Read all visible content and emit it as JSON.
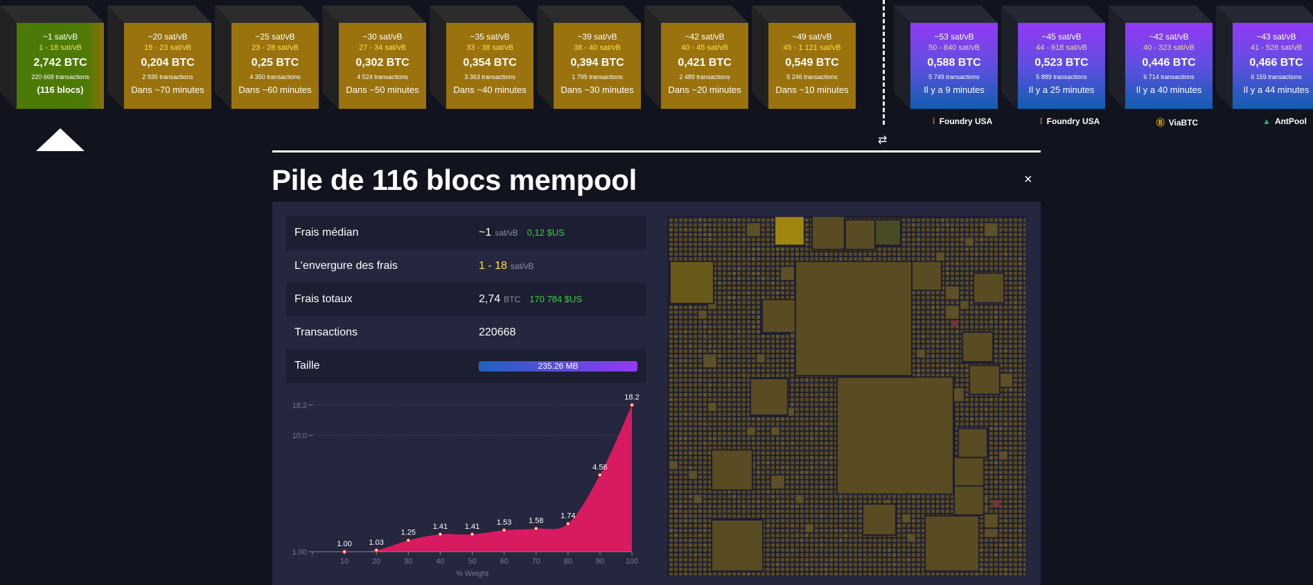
{
  "projected_blocks": [
    {
      "fee": "~1 sat/vB",
      "range": "1 - 18 sat/vB",
      "total": "2,742 BTC",
      "txs": "220 668 transactions",
      "footer": "(116 blocs)"
    },
    {
      "fee": "~20 sat/vB",
      "range": "19 - 23 sat/vB",
      "total": "0,204 BTC",
      "txs": "2 935 transactions",
      "footer": "Dans ~70 minutes"
    },
    {
      "fee": "~25 sat/vB",
      "range": "23 - 28 sat/vB",
      "total": "0,25 BTC",
      "txs": "4 350 transactions",
      "footer": "Dans ~60 minutes"
    },
    {
      "fee": "~30 sat/vB",
      "range": "27 - 34 sat/vB",
      "total": "0,302 BTC",
      "txs": "4 524 transactions",
      "footer": "Dans ~50 minutes"
    },
    {
      "fee": "~35 sat/vB",
      "range": "33 - 38 sat/vB",
      "total": "0,354 BTC",
      "txs": "3 363 transactions",
      "footer": "Dans ~40 minutes"
    },
    {
      "fee": "~39 sat/vB",
      "range": "38 - 40 sat/vB",
      "total": "0,394 BTC",
      "txs": "1 795 transactions",
      "footer": "Dans ~30 minutes"
    },
    {
      "fee": "~42 sat/vB",
      "range": "40 - 45 sat/vB",
      "total": "0,421 BTC",
      "txs": "2 489 transactions",
      "footer": "Dans ~20 minutes"
    },
    {
      "fee": "~49 sat/vB",
      "range": "45 - 1 121 sat/vB",
      "total": "0,549 BTC",
      "txs": "5 246 transactions",
      "footer": "Dans ~10 minutes"
    }
  ],
  "mined_blocks": [
    {
      "fee": "~53 sat/vB",
      "range": "50 - 840 sat/vB",
      "total": "0,588 BTC",
      "txs": "5 749 transactions",
      "footer": "Il y a 9 minutes",
      "pool": "Foundry USA",
      "pool_icon": "foundry-icon"
    },
    {
      "fee": "~45 sat/vB",
      "range": "44 - 918 sat/vB",
      "total": "0,523 BTC",
      "txs": "5 889 transactions",
      "footer": "Il y a 25 minutes",
      "pool": "Foundry USA",
      "pool_icon": "foundry-icon"
    },
    {
      "fee": "~42 sat/vB",
      "range": "40 - 323 sat/vB",
      "total": "0,446 BTC",
      "txs": "6 714 transactions",
      "footer": "Il y a 40 minutes",
      "pool": "ViaBTC",
      "pool_icon": "viabtc-icon"
    },
    {
      "fee": "~43 sat/vB",
      "range": "41 - 526 sat/vB",
      "total": "0,466 BTC",
      "txs": "6 159 transactions",
      "footer": "Il y a 44 minutes",
      "pool": "AntPool",
      "pool_icon": "antpool-icon"
    }
  ],
  "swap_icon": "⇄",
  "detail": {
    "title": "Pile de 116 blocs mempool",
    "close": "×",
    "median_fee": {
      "label": "Frais médian",
      "value": "~1",
      "unit": "sat/vB",
      "fiat": "0,12 $US"
    },
    "fee_span": {
      "label": "L'envergure des frais",
      "value": "1 - 18",
      "unit": "sat/vB"
    },
    "total_fees": {
      "label": "Frais totaux",
      "value": "2,74",
      "unit": "BTC",
      "fiat": "170 784 $US"
    },
    "transactions": {
      "label": "Transactions",
      "value": "220668"
    },
    "size": {
      "label": "Taille",
      "value": "235.26 MB",
      "fill_percent": 100
    }
  },
  "colors": {
    "projected": "#9a730e",
    "first_block": "#4b7a06",
    "mined_top": "#9339f4",
    "mined_bottom": "#105fb0",
    "area": "#d81b60",
    "treemap_tx": "#5a4c22"
  },
  "chart_data": {
    "type": "area",
    "x": [
      10,
      20,
      30,
      40,
      50,
      60,
      70,
      80,
      90,
      100
    ],
    "values": [
      1.0,
      1.03,
      1.25,
      1.41,
      1.41,
      1.53,
      1.58,
      1.74,
      4.56,
      18.2
    ],
    "data_labels": [
      "1.00",
      "1.03",
      "1.25",
      "1.41",
      "1.41",
      "1.53",
      "1.58",
      "1.74",
      "4.56",
      "18.2"
    ],
    "xlabel": "% Weight",
    "xticks": [
      "10",
      "20",
      "30",
      "40",
      "50",
      "60",
      "70",
      "80",
      "90",
      "100"
    ],
    "yticks": [
      "1.00",
      "10.0",
      "18.2"
    ],
    "ytick_values": [
      1,
      10,
      18.2
    ],
    "yscale": "log",
    "xlim": [
      0,
      100
    ],
    "ylim": [
      1,
      18.2
    ],
    "grid": "horizontal dotted"
  }
}
